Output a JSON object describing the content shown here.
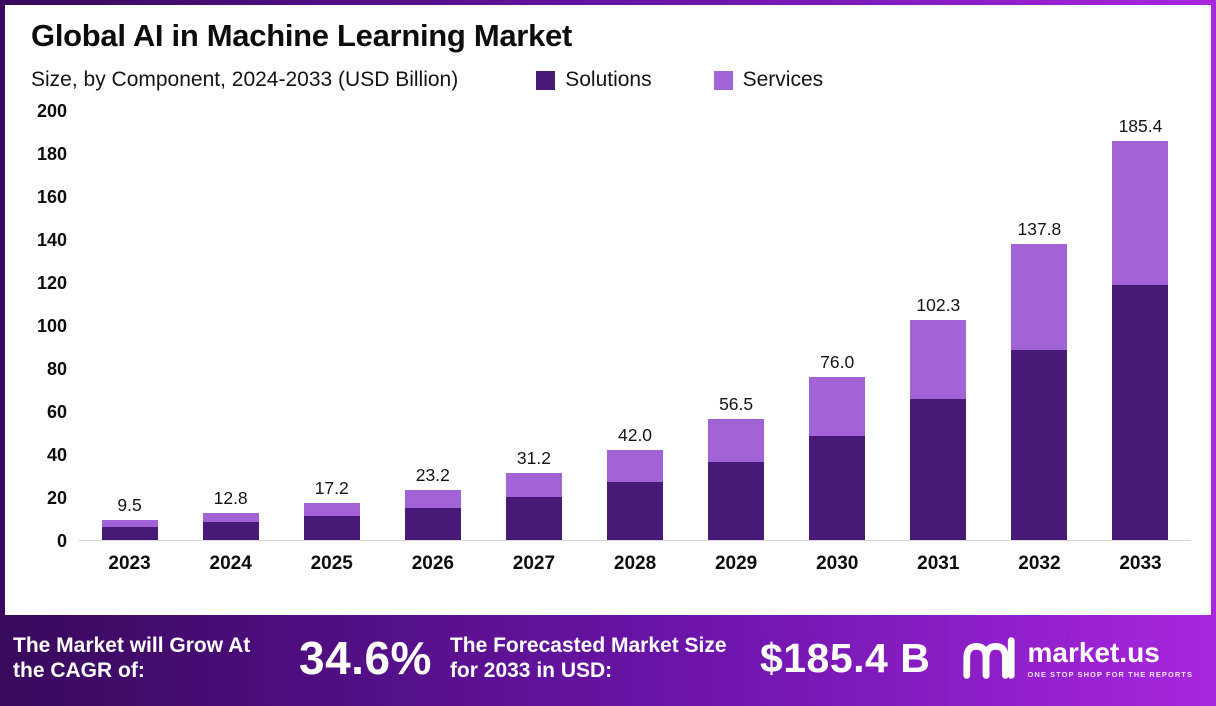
{
  "header": {
    "title": "Global AI in Machine Learning Market",
    "subtitle": "Size, by Component, 2024-2033 (USD Billion)"
  },
  "legend": [
    {
      "label": "Solutions",
      "color": "#481a78"
    },
    {
      "label": "Services",
      "color": "#a263d6"
    }
  ],
  "chart_data": {
    "type": "bar",
    "stacked": true,
    "title": "Global AI in Machine Learning Market",
    "subtitle": "Size, by Component, 2024-2033 (USD Billion)",
    "categories": [
      "2023",
      "2024",
      "2025",
      "2026",
      "2027",
      "2028",
      "2029",
      "2030",
      "2031",
      "2032",
      "2033"
    ],
    "series": [
      {
        "name": "Solutions",
        "color": "#481a78",
        "values": [
          6.1,
          8.2,
          11.0,
          14.9,
          20.0,
          26.9,
          36.2,
          48.6,
          65.5,
          88.2,
          118.7
        ]
      },
      {
        "name": "Services",
        "color": "#a263d6",
        "values": [
          3.4,
          4.6,
          6.2,
          8.3,
          11.2,
          15.1,
          20.3,
          27.4,
          36.8,
          49.6,
          66.7
        ]
      }
    ],
    "totals": [
      9.5,
      12.8,
      17.2,
      23.2,
      31.2,
      42.0,
      56.5,
      76.0,
      102.3,
      137.8,
      185.4
    ],
    "total_labels": [
      "9.5",
      "12.8",
      "17.2",
      "23.2",
      "31.2",
      "42.0",
      "56.5",
      "76.0",
      "102.3",
      "137.8",
      "185.4"
    ],
    "ylim": [
      0,
      200
    ],
    "yticks": [
      0,
      20,
      40,
      60,
      80,
      100,
      120,
      140,
      160,
      180,
      200
    ],
    "grid": false,
    "legend_position": "top"
  },
  "footer": {
    "cagr_label": "The Market will Grow At the CAGR of:",
    "cagr_value": "34.6%",
    "forecast_label": "The Forecasted Market Size for 2033 in USD:",
    "forecast_value": "$185.4 B",
    "brand": "market.us",
    "brand_tagline": "ONE STOP SHOP FOR THE REPORTS"
  },
  "colors": {
    "solutions": "#481a78",
    "services": "#a263d6",
    "banner_gradient_start": "#38095c",
    "banner_gradient_end": "#a826df"
  }
}
